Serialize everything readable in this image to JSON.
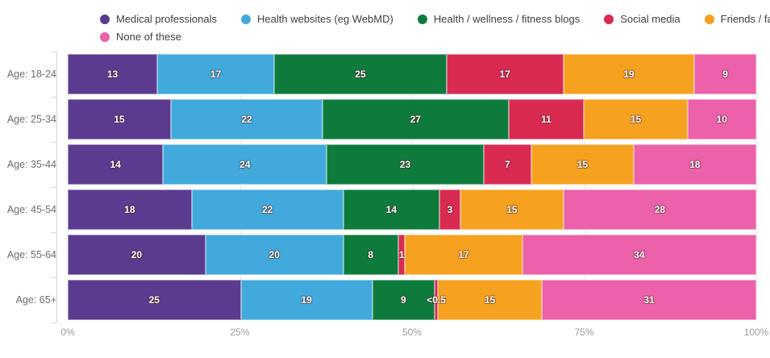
{
  "chart_data": {
    "type": "bar",
    "orientation": "horizontal-stacked-100",
    "categories": [
      "Age: 18-24",
      "Age: 25-34",
      "Age: 35-44",
      "Age: 45-54",
      "Age: 55-64",
      "Age: 65+"
    ],
    "series": [
      {
        "name": "Medical professionals",
        "color": "#5B3B8F",
        "values": [
          13,
          15,
          14,
          18,
          20,
          25
        ]
      },
      {
        "name": "Health websites (eg WebMD)",
        "color": "#41A9DB",
        "values": [
          17,
          22,
          24,
          22,
          20,
          19
        ]
      },
      {
        "name": "Health / wellness / fitness blogs",
        "color": "#0E7B3D",
        "values": [
          25,
          27,
          23,
          14,
          8,
          9
        ]
      },
      {
        "name": "Social media",
        "color": "#D92A52",
        "values": [
          17,
          11,
          7,
          3,
          1,
          0.5
        ],
        "value_labels": [
          "17",
          "11",
          "7",
          "3",
          "1",
          "<0.5"
        ]
      },
      {
        "name": "Friends / family",
        "color": "#F6A120",
        "values": [
          19,
          15,
          15,
          15,
          17,
          15
        ]
      },
      {
        "name": "None of these",
        "color": "#EC61A9",
        "values": [
          9,
          10,
          18,
          28,
          34,
          31
        ]
      }
    ],
    "x_ticks": [
      "0%",
      "25%",
      "50%",
      "75%",
      "100%"
    ],
    "xlim": [
      0,
      100
    ],
    "grid": true,
    "legend_position": "top",
    "title": "",
    "xlabel": "",
    "ylabel": ""
  }
}
